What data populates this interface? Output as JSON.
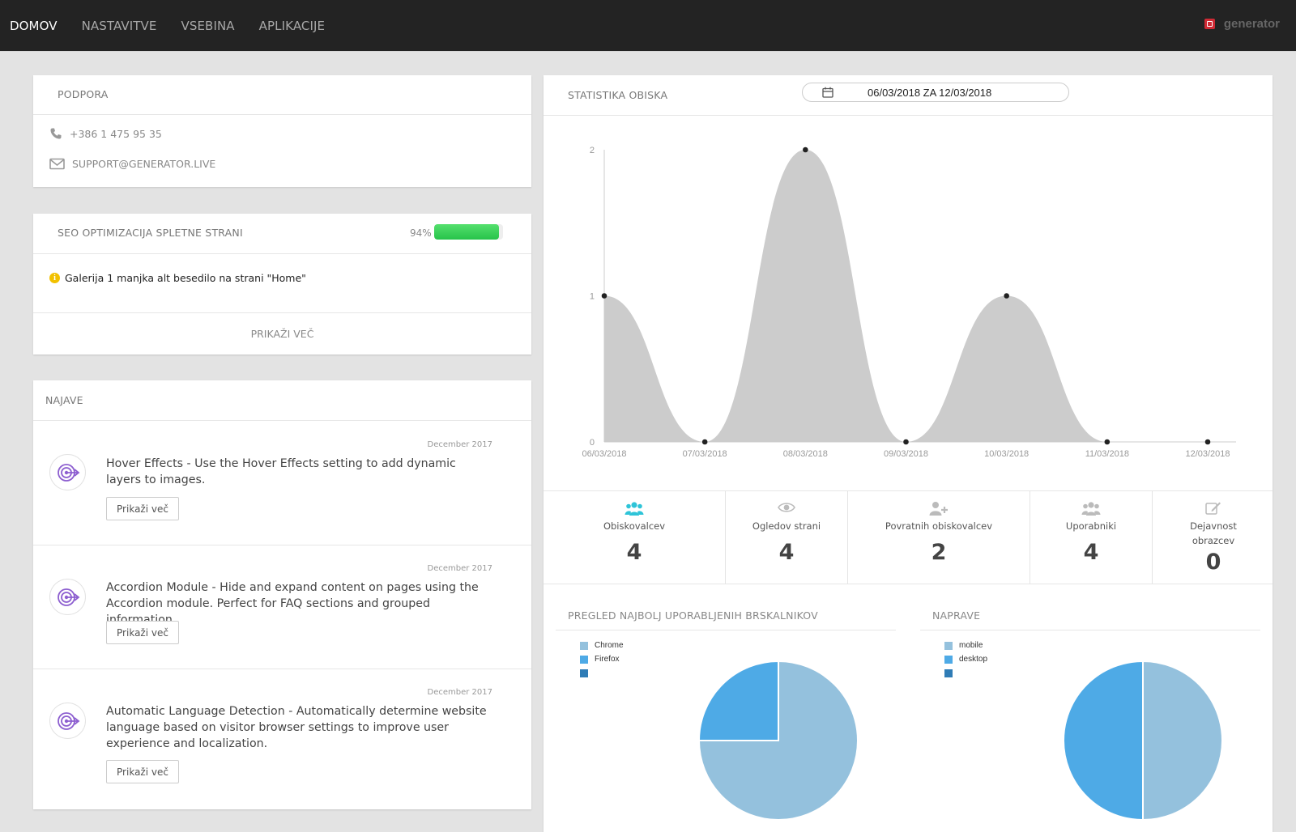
{
  "nav": {
    "items": [
      {
        "label": "DOMOV",
        "active": true
      },
      {
        "label": "NASTAVITVE",
        "active": false
      },
      {
        "label": "VSEBINA",
        "active": false
      },
      {
        "label": "APLIKACIJE",
        "active": false
      }
    ],
    "brand": "generator"
  },
  "support": {
    "title": "PODPORA",
    "phone": "+386 1 475 95 35",
    "email": "SUPPORT@GENERATOR.LIVE"
  },
  "seo": {
    "title": "SEO OPTIMIZACIJA SPLETNE STRANI",
    "percent_label": "94%",
    "progress": 0.94,
    "warning": "Galerija 1 manjka alt besedilo na strani \"Home\"",
    "more_label": "PRIKAŽI VEČ"
  },
  "news": {
    "title": "NAJAVE",
    "items": [
      {
        "date": "December 2017",
        "text": "Hover Effects - Use the Hover Effects setting to add dynamic layers to images.",
        "button": "Prikaži več"
      },
      {
        "date": "December 2017",
        "text": "Accordion Module - Hide and expand content on pages using the Accordion module. Perfect for FAQ sections and grouped information.",
        "button": "Prikaži več"
      },
      {
        "date": "December 2017",
        "text": "Automatic Language Detection - Automatically determine website language based on visitor browser settings to improve user experience and localization.",
        "button": "Prikaži več"
      }
    ]
  },
  "stats": {
    "title": "STATISTIKA OBISKA",
    "date_range": "06/03/2018 ZA 12/03/2018",
    "metrics": [
      {
        "label": "Obiskovalcev",
        "value": "4",
        "icon": "users-icon",
        "color": "#2ec4d8"
      },
      {
        "label": "Ogledov strani",
        "value": "4",
        "icon": "eye-icon",
        "color": "#bbbbbb"
      },
      {
        "label": "Povratnih obiskovalcev",
        "value": "2",
        "icon": "user-plus-icon",
        "color": "#bbbbbb"
      },
      {
        "label": "Uporabniki",
        "value": "4",
        "icon": "users-icon",
        "color": "#bbbbbb"
      },
      {
        "label": "Dejavnost obrazcev",
        "value": "0",
        "icon": "edit-icon",
        "color": "#bbbbbb"
      }
    ]
  },
  "browsers": {
    "title": "PREGLED NAJBOLJ UPORABLJENIH BRSKALNIKOV",
    "legend": [
      "Chrome",
      "Firefox",
      ""
    ]
  },
  "devices": {
    "title": "NAPRAVE",
    "legend": [
      "mobile",
      "desktop",
      ""
    ]
  },
  "chart_data": [
    {
      "type": "area",
      "x": [
        "06/03/2018",
        "07/03/2018",
        "08/03/2018",
        "09/03/2018",
        "10/03/2018",
        "11/03/2018",
        "12/03/2018"
      ],
      "values": [
        1,
        0,
        2,
        0,
        1,
        0,
        0
      ],
      "ylim": [
        0,
        2
      ],
      "yticks": [
        0,
        1,
        2
      ],
      "fill_color": "#cccccc"
    },
    {
      "type": "pie",
      "labels": [
        "Chrome",
        "Firefox",
        ""
      ],
      "values": [
        3,
        1,
        0
      ],
      "colors": [
        "#94c1dd",
        "#4eaae6",
        "#2f7cb6"
      ]
    },
    {
      "type": "pie",
      "labels": [
        "mobile",
        "desktop",
        ""
      ],
      "values": [
        2,
        2,
        0
      ],
      "colors": [
        "#94c1dd",
        "#4eaae6",
        "#2f7cb6"
      ]
    }
  ]
}
